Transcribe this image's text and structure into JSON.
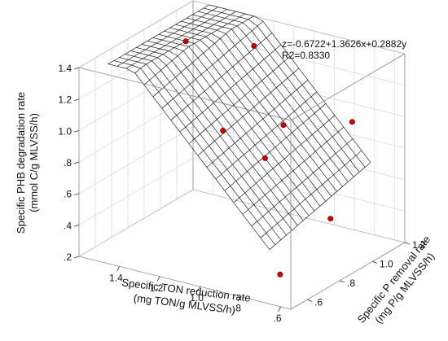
{
  "chart_data": {
    "type": "scatter",
    "subtype": "3d-scatter-with-fitted-plane",
    "equation": "z=-0.6722+1.3626x+0.2882y",
    "r2_label": "R2=0.8330",
    "xlabel_line1": "Specific TON reduction rate",
    "xlabel_line2": "(mg TON/g MLVSS/h)",
    "ylabel_line1": "Specific P removal rate",
    "ylabel_line2": "(mg P/g MLVSS/h)",
    "zlabel_line1": "Specific PHB degradation rate",
    "zlabel_line2": "(mmol C/g MLVSS/h)",
    "x_ticks": [
      ".6",
      ".8",
      "1.0",
      "1.2",
      "1.4"
    ],
    "y_ticks": [
      ".6",
      ".8",
      "1.0",
      "1.2"
    ],
    "z_ticks": [
      ".2",
      ".4",
      ".6",
      ".8",
      "1.0",
      "1.2",
      "1.4"
    ],
    "xlim": [
      0.55,
      1.6
    ],
    "ylim": [
      0.5,
      1.2
    ],
    "zlim": [
      0.2,
      1.4
    ],
    "plane": {
      "intercept": -0.6722,
      "x_coef": 1.3626,
      "y_coef": 0.2882
    },
    "marker_color": "#cc0000",
    "points": [
      {
        "x": 1.12,
        "y": 0.98,
        "z": 1.4
      },
      {
        "x": 1.45,
        "y": 0.97,
        "z": 1.33
      },
      {
        "x": 1.08,
        "y": 0.74,
        "z": 1.02
      },
      {
        "x": 0.95,
        "y": 0.95,
        "z": 0.97
      },
      {
        "x": 0.92,
        "y": 0.8,
        "z": 0.86
      },
      {
        "x": 0.73,
        "y": 1.1,
        "z": 0.97
      },
      {
        "x": 0.66,
        "y": 0.88,
        "z": 0.51
      },
      {
        "x": 0.7,
        "y": 0.62,
        "z": 0.3
      }
    ]
  }
}
